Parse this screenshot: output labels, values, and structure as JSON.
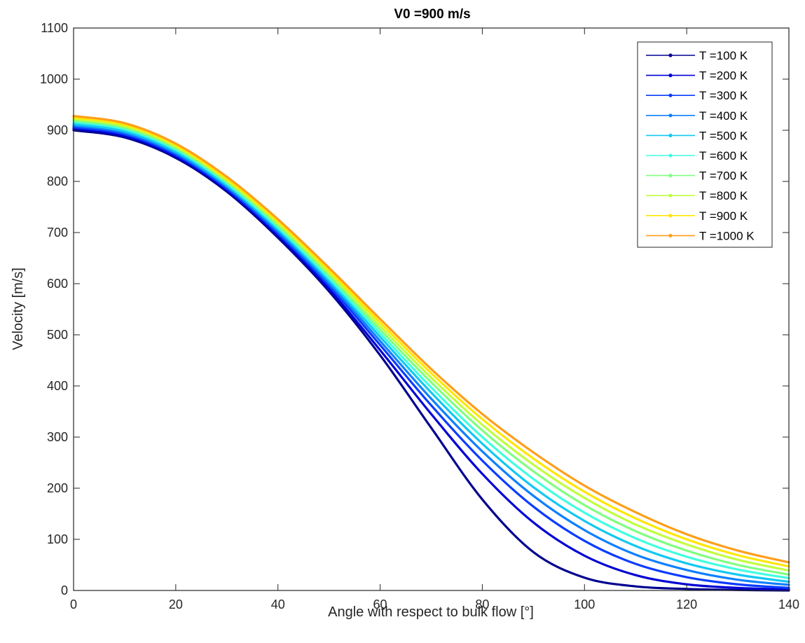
{
  "chart_data": {
    "type": "line",
    "title": "V0 =900 m/s",
    "xlabel": "Angle with respect to bulk flow [°]",
    "ylabel": "Velocity [m/s]",
    "xlim": [
      0,
      140
    ],
    "ylim": [
      0,
      1100
    ],
    "xticks": [
      0,
      20,
      40,
      60,
      80,
      100,
      120,
      140
    ],
    "yticks": [
      0,
      100,
      200,
      300,
      400,
      500,
      600,
      700,
      800,
      900,
      1000,
      1100
    ],
    "grid": false,
    "legend_position": "top-right",
    "x": [
      0,
      10,
      20,
      30,
      40,
      50,
      60,
      70,
      80,
      90,
      100,
      110,
      120,
      130,
      140
    ],
    "series": [
      {
        "name": "T =100 K",
        "color": "#00008f",
        "values": [
          900,
          886,
          846,
          780,
          690,
          585,
          460,
          318,
          178,
          75,
          25,
          8,
          3,
          1,
          0
        ]
      },
      {
        "name": "T =200 K",
        "color": "#0000d4",
        "values": [
          903,
          889,
          849,
          783,
          694,
          590,
          470,
          345,
          228,
          133,
          68,
          30,
          12,
          5,
          2
        ]
      },
      {
        "name": "T =300 K",
        "color": "#0a3cff",
        "values": [
          906,
          892,
          852,
          786,
          698,
          596,
          480,
          362,
          254,
          164,
          97,
          52,
          26,
          12,
          5
        ]
      },
      {
        "name": "T =400 K",
        "color": "#0f80ff",
        "values": [
          909,
          895,
          855,
          789,
          702,
          601,
          488,
          375,
          272,
          185,
          118,
          70,
          40,
          21,
          11
        ]
      },
      {
        "name": "T =500 K",
        "color": "#12c8f2",
        "values": [
          912,
          898,
          858,
          792,
          706,
          606,
          496,
          387,
          287,
          202,
          136,
          87,
          53,
          31,
          17
        ]
      },
      {
        "name": "T =600 K",
        "color": "#40ffdf",
        "values": [
          916,
          902,
          862,
          796,
          710,
          611,
          503,
          397,
          300,
          218,
          152,
          102,
          66,
          41,
          24
        ]
      },
      {
        "name": "T =700 K",
        "color": "#80ff80",
        "values": [
          919,
          905,
          865,
          799,
          714,
          616,
          510,
          407,
          313,
          233,
          167,
          116,
          78,
          50,
          31
        ]
      },
      {
        "name": "T =800 K",
        "color": "#c0ff40",
        "values": [
          922,
          908,
          868,
          802,
          718,
          621,
          517,
          416,
          324,
          246,
          181,
          129,
          90,
          60,
          39
        ]
      },
      {
        "name": "T =900 K",
        "color": "#ffe600",
        "values": [
          925,
          911,
          871,
          805,
          722,
          626,
          524,
          425,
          335,
          258,
          193,
          141,
          100,
          69,
          47
        ]
      },
      {
        "name": "T =1000 K",
        "color": "#ff9e1a",
        "values": [
          928,
          914,
          874,
          809,
          726,
          631,
          531,
          433,
          345,
          270,
          205,
          153,
          110,
          78,
          55
        ]
      }
    ]
  }
}
